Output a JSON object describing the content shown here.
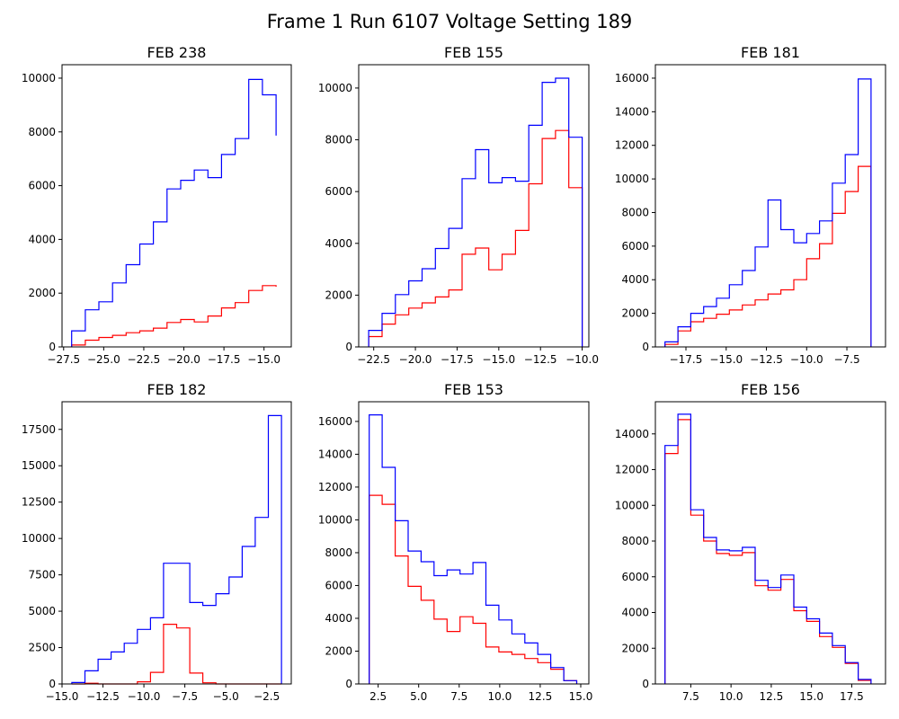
{
  "title": "Frame 1 Run 6107 Voltage Setting 189",
  "colors": {
    "series_a": "#0000ff",
    "series_b": "#ff0000"
  },
  "chart_data": [
    {
      "type": "histogram",
      "title": "FEB 238",
      "xlim": [
        -27.6,
        -13.3
      ],
      "ylim": [
        0,
        10500
      ],
      "xticks": [
        -27.5,
        -25.0,
        -22.5,
        -20.0,
        -17.5,
        -15.0
      ],
      "xtick_labels": [
        "−27.5",
        "−25.0",
        "−22.5",
        "−20.0",
        "−17.5",
        "−15.0"
      ],
      "yticks": [
        0,
        2000,
        4000,
        6000,
        8000,
        10000
      ],
      "ytick_labels": [
        "0",
        "2000",
        "4000",
        "6000",
        "8000",
        "10000"
      ],
      "bin_edges": [
        -27.0,
        -26.15,
        -25.3,
        -24.45,
        -23.6,
        -22.75,
        -21.9,
        -21.05,
        -20.2,
        -19.35,
        -18.5,
        -17.65,
        -16.8,
        -15.95,
        -15.1,
        -14.25
      ],
      "series": [
        {
          "color": "blue",
          "counts": [
            600,
            1380,
            1680,
            2380,
            3060,
            3830,
            4650,
            5880,
            6200,
            6580,
            6300,
            7160,
            7750,
            9950,
            9380,
            7860
          ]
        },
        {
          "color": "red",
          "counts": [
            70,
            250,
            350,
            430,
            530,
            600,
            700,
            910,
            1020,
            930,
            1150,
            1450,
            1650,
            2100,
            2280,
            2240
          ]
        }
      ]
    },
    {
      "type": "histogram",
      "title": "FEB 155",
      "xlim": [
        -23.4,
        -9.6
      ],
      "ylim": [
        0,
        10900
      ],
      "xticks": [
        -22.5,
        -20.0,
        -17.5,
        -15.0,
        -12.5,
        -10.0
      ],
      "xtick_labels": [
        "−22.5",
        "−20.0",
        "−17.5",
        "−15.0",
        "−12.5",
        "−10.0"
      ],
      "yticks": [
        0,
        2000,
        4000,
        6000,
        8000,
        10000
      ],
      "ytick_labels": [
        "0",
        "2000",
        "4000",
        "6000",
        "8000",
        "10000"
      ],
      "bin_edges": [
        -22.8,
        -22.0,
        -21.2,
        -20.4,
        -19.6,
        -18.8,
        -18.0,
        -17.2,
        -16.4,
        -15.6,
        -14.8,
        -14.0,
        -13.2,
        -12.4,
        -11.6,
        -10.8,
        -10.0
      ],
      "series": [
        {
          "color": "blue",
          "counts": [
            640,
            1300,
            2020,
            2550,
            3020,
            3800,
            4580,
            6500,
            7620,
            6340,
            6540,
            6400,
            8560,
            10220,
            10380,
            8100
          ]
        },
        {
          "color": "red",
          "counts": [
            400,
            880,
            1240,
            1500,
            1700,
            1930,
            2200,
            3580,
            3820,
            2980,
            3580,
            4500,
            6300,
            8050,
            8360,
            6150
          ]
        }
      ]
    },
    {
      "type": "histogram",
      "title": "FEB 181",
      "xlim": [
        -19.4,
        -5.1
      ],
      "ylim": [
        0,
        16800
      ],
      "xticks": [
        -17.5,
        -15.0,
        -12.5,
        -10.0,
        -7.5
      ],
      "xtick_labels": [
        "−17.5",
        "−15.0",
        "−12.5",
        "−10.0",
        "−7.5"
      ],
      "yticks": [
        0,
        2000,
        4000,
        6000,
        8000,
        10000,
        12000,
        14000,
        16000
      ],
      "ytick_labels": [
        "0",
        "2000",
        "4000",
        "6000",
        "8000",
        "10000",
        "12000",
        "14000",
        "16000"
      ],
      "bin_edges": [
        -18.8,
        -18.0,
        -17.2,
        -16.4,
        -15.6,
        -14.8,
        -14.0,
        -13.2,
        -12.4,
        -11.6,
        -10.8,
        -10.0,
        -9.2,
        -8.4,
        -7.6,
        -6.8,
        -6.0
      ],
      "series": [
        {
          "color": "blue",
          "counts": [
            300,
            1200,
            2000,
            2400,
            2900,
            3700,
            4550,
            5950,
            8750,
            6980,
            6200,
            6750,
            7500,
            9750,
            11450,
            15950
          ]
        },
        {
          "color": "red",
          "counts": [
            150,
            950,
            1500,
            1700,
            1950,
            2200,
            2500,
            2800,
            3150,
            3400,
            4000,
            5250,
            6150,
            7950,
            9250,
            10750
          ]
        }
      ]
    },
    {
      "type": "histogram",
      "title": "FEB 182",
      "xlim": [
        -15.0,
        -1.0
      ],
      "ylim": [
        0,
        19400
      ],
      "xticks": [
        -15.0,
        -12.5,
        -10.0,
        -7.5,
        -5.0,
        -2.5
      ],
      "xtick_labels": [
        "−15.0",
        "−12.5",
        "−10.0",
        "−7.5",
        "−5.0",
        "−2.5"
      ],
      "yticks": [
        0,
        2500,
        5000,
        7500,
        10000,
        12500,
        15000,
        17500
      ],
      "ytick_labels": [
        "0",
        "2500",
        "5000",
        "7500",
        "10000",
        "12500",
        "15000",
        "17500"
      ],
      "bin_edges": [
        -14.4,
        -13.6,
        -12.8,
        -12.0,
        -11.2,
        -10.4,
        -9.6,
        -8.8,
        -8.0,
        -7.2,
        -6.4,
        -5.6,
        -4.8,
        -4.0,
        -3.2,
        -2.4,
        -1.6
      ],
      "series": [
        {
          "color": "blue",
          "counts": [
            100,
            900,
            1700,
            2200,
            2800,
            3750,
            4550,
            8300,
            8300,
            5600,
            5400,
            6200,
            7350,
            9450,
            11450,
            18450
          ]
        },
        {
          "color": "red",
          "counts": [
            0,
            50,
            0,
            0,
            0,
            150,
            800,
            4100,
            3850,
            750,
            80,
            0,
            0,
            0,
            0,
            0
          ]
        }
      ]
    },
    {
      "type": "histogram",
      "title": "FEB 153",
      "xlim": [
        1.3,
        15.5
      ],
      "ylim": [
        0,
        17200
      ],
      "xticks": [
        2.5,
        5.0,
        7.5,
        10.0,
        12.5,
        15.0
      ],
      "xtick_labels": [
        "2.5",
        "5.0",
        "7.5",
        "10.0",
        "12.5",
        "15.0"
      ],
      "yticks": [
        0,
        2000,
        4000,
        6000,
        8000,
        10000,
        12000,
        14000,
        16000
      ],
      "ytick_labels": [
        "0",
        "2000",
        "4000",
        "6000",
        "8000",
        "10000",
        "12000",
        "14000",
        "16000"
      ],
      "bin_edges": [
        1.95,
        2.75,
        3.55,
        4.35,
        5.15,
        5.95,
        6.75,
        7.55,
        8.35,
        9.15,
        9.95,
        10.75,
        11.55,
        12.35,
        13.15,
        13.95,
        14.75
      ],
      "series": [
        {
          "color": "blue",
          "counts": [
            16400,
            13200,
            9950,
            8100,
            7450,
            6600,
            6950,
            6700,
            7400,
            4800,
            3900,
            3050,
            2500,
            1800,
            1000,
            200
          ]
        },
        {
          "color": "red",
          "counts": [
            11500,
            10950,
            7800,
            5950,
            5100,
            3950,
            3200,
            4100,
            3700,
            2250,
            1950,
            1800,
            1550,
            1300,
            900,
            200
          ]
        }
      ]
    },
    {
      "type": "histogram",
      "title": "FEB 156",
      "xlim": [
        5.3,
        19.6
      ],
      "ylim": [
        0,
        15800
      ],
      "xticks": [
        7.5,
        10.0,
        12.5,
        15.0,
        17.5
      ],
      "xtick_labels": [
        "7.5",
        "10.0",
        "12.5",
        "15.0",
        "17.5"
      ],
      "yticks": [
        0,
        2000,
        4000,
        6000,
        8000,
        10000,
        12000,
        14000
      ],
      "ytick_labels": [
        "0",
        "2000",
        "4000",
        "6000",
        "8000",
        "10000",
        "12000",
        "14000"
      ],
      "bin_edges": [
        5.9,
        6.7,
        7.5,
        8.3,
        9.1,
        9.9,
        10.7,
        11.5,
        12.3,
        13.1,
        13.9,
        14.7,
        15.5,
        16.3,
        17.1,
        17.9,
        18.7
      ],
      "series": [
        {
          "color": "blue",
          "counts": [
            13350,
            15100,
            9750,
            8200,
            7500,
            7450,
            7650,
            5800,
            5400,
            6100,
            4300,
            3650,
            2850,
            2150,
            1200,
            250
          ]
        },
        {
          "color": "red",
          "counts": [
            12900,
            14800,
            9450,
            8000,
            7300,
            7200,
            7350,
            5500,
            5250,
            5850,
            4100,
            3500,
            2650,
            2050,
            1150,
            200
          ]
        }
      ]
    }
  ]
}
